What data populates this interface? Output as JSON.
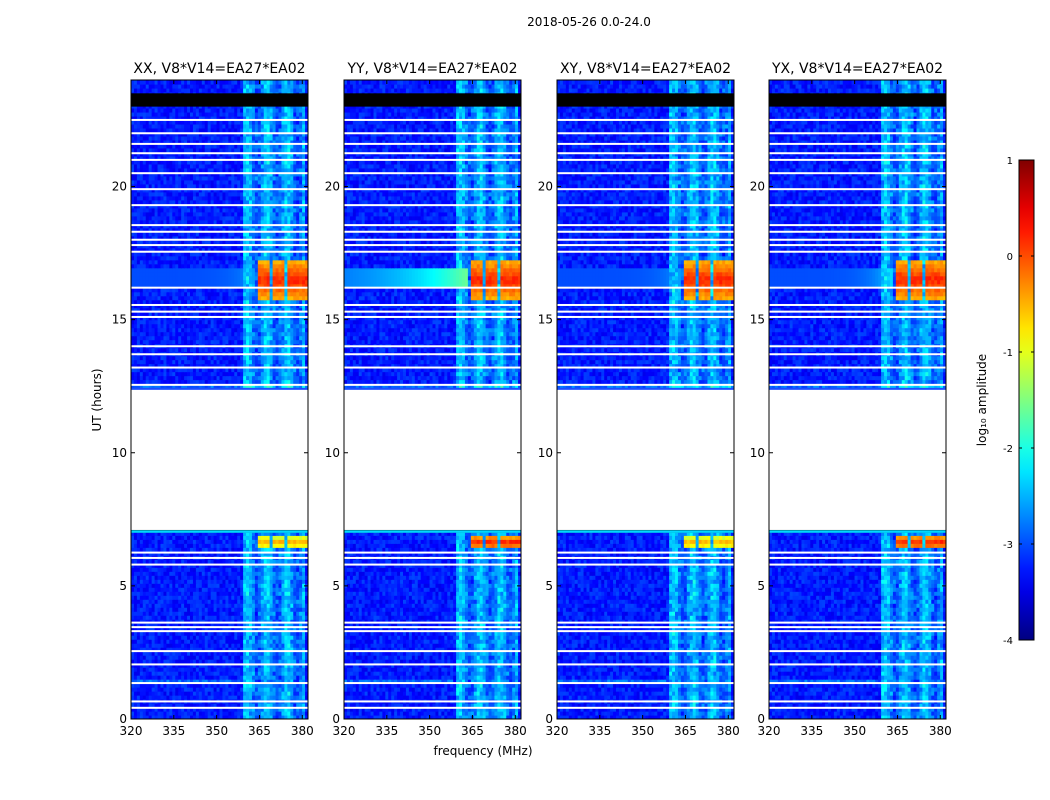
{
  "chart_data": {
    "type": "heatmap",
    "suptitle": "2018-05-26 0.0-24.0",
    "xlabel": "frequency (MHz)",
    "ylabel": "UT (hours)",
    "xlim": [
      320,
      382
    ],
    "ylim": [
      0,
      24
    ],
    "xticks": [
      320,
      335,
      350,
      365,
      380
    ],
    "yticks": [
      0,
      5,
      10,
      15,
      20
    ],
    "data_gap_hours": [
      7.1,
      12.4
    ],
    "rfi_band_mhz": [
      359,
      381
    ],
    "strong_rfi_hours": [
      [
        15.7,
        17.3
      ],
      [
        6.4,
        6.9
      ]
    ],
    "panels": [
      {
        "title": "XX, V8*V14=EA27*EA02"
      },
      {
        "title": "YY, V8*V14=EA27*EA02"
      },
      {
        "title": "XY, V8*V14=EA27*EA02"
      },
      {
        "title": "YX, V8*V14=EA27*EA02"
      }
    ],
    "colorbar": {
      "label": "log₁₀ amplitude",
      "range": [
        -4,
        1
      ],
      "ticks": [
        1,
        0,
        -1,
        -2,
        -3,
        -4
      ],
      "colormap": "jet"
    }
  }
}
